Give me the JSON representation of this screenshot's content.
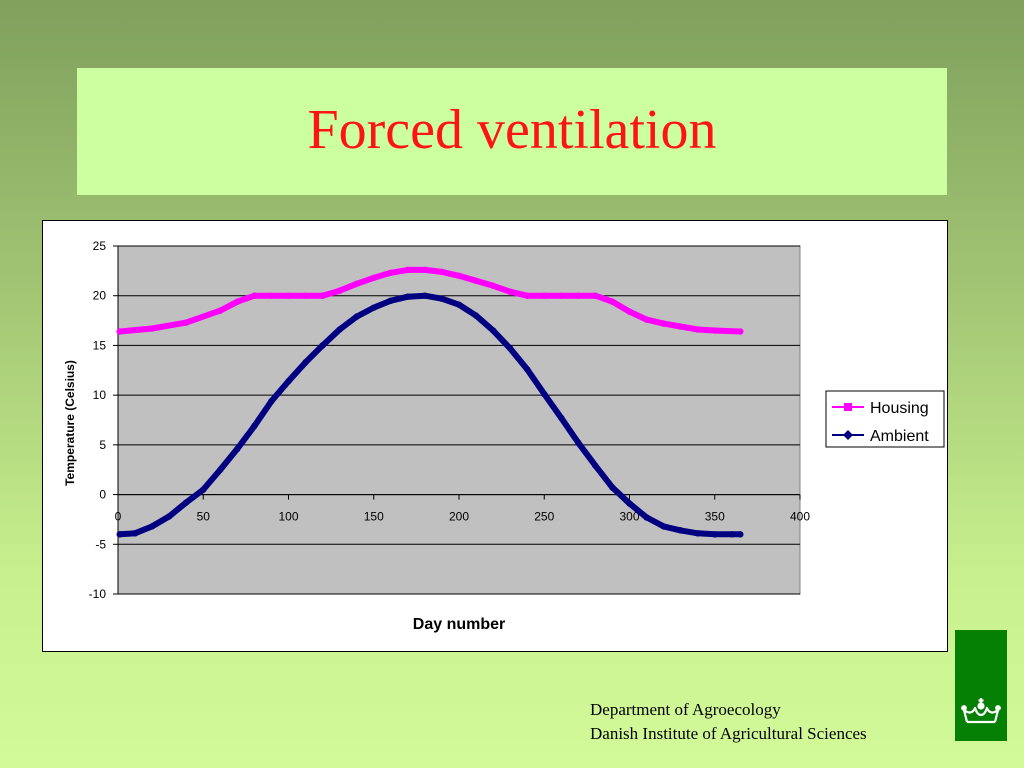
{
  "slide": {
    "title": "Forced ventilation",
    "footer_line1": "Department of Agroecology",
    "footer_line2": "Danish Institute of Agricultural Sciences",
    "logo_icon": "crown-logo-icon",
    "colors": {
      "title": "#ff1414",
      "title_box": "#ccffa0",
      "logo_bg": "#058005"
    }
  },
  "chart_data": {
    "type": "line",
    "xlabel": "Day number",
    "ylabel": "Temperature (Celsius)",
    "xlim": [
      0,
      400
    ],
    "ylim": [
      -10,
      25
    ],
    "x_ticks": [
      0,
      50,
      100,
      150,
      200,
      250,
      300,
      350,
      400
    ],
    "y_ticks": [
      25,
      20,
      15,
      10,
      5,
      0,
      -5,
      -10
    ],
    "grid": "horizontal",
    "plot_background": "#c0c0c0",
    "legend_position": "right",
    "series": [
      {
        "name": "Housing",
        "color": "#ff00ff",
        "marker": "square",
        "x": [
          1,
          20,
          40,
          60,
          70,
          80,
          90,
          100,
          110,
          120,
          130,
          140,
          150,
          160,
          170,
          180,
          190,
          200,
          210,
          220,
          230,
          240,
          250,
          260,
          270,
          280,
          290,
          300,
          310,
          320,
          330,
          340,
          350,
          365
        ],
        "values": [
          16.4,
          16.7,
          17.3,
          18.5,
          19.4,
          20.0,
          20.0,
          20.0,
          20.0,
          20.0,
          20.5,
          21.2,
          21.8,
          22.3,
          22.6,
          22.6,
          22.4,
          22.0,
          21.5,
          21.0,
          20.4,
          20.0,
          20.0,
          20.0,
          20.0,
          20.0,
          19.4,
          18.4,
          17.6,
          17.2,
          16.9,
          16.6,
          16.5,
          16.4
        ]
      },
      {
        "name": "Ambient",
        "color": "#000080",
        "marker": "diamond",
        "x": [
          1,
          10,
          20,
          30,
          40,
          50,
          60,
          70,
          80,
          90,
          100,
          110,
          120,
          130,
          140,
          150,
          160,
          170,
          180,
          190,
          200,
          210,
          220,
          230,
          240,
          250,
          260,
          270,
          280,
          290,
          300,
          310,
          320,
          330,
          340,
          350,
          360,
          365
        ],
        "values": [
          -4.0,
          -3.9,
          -3.2,
          -2.2,
          -0.8,
          0.5,
          2.5,
          4.6,
          6.9,
          9.4,
          11.4,
          13.3,
          15.0,
          16.6,
          17.9,
          18.8,
          19.5,
          19.9,
          20.0,
          19.7,
          19.1,
          18.0,
          16.5,
          14.7,
          12.6,
          10.1,
          7.7,
          5.2,
          2.9,
          0.7,
          -0.9,
          -2.3,
          -3.2,
          -3.6,
          -3.9,
          -4.0,
          -4.0,
          -4.0
        ]
      }
    ]
  }
}
